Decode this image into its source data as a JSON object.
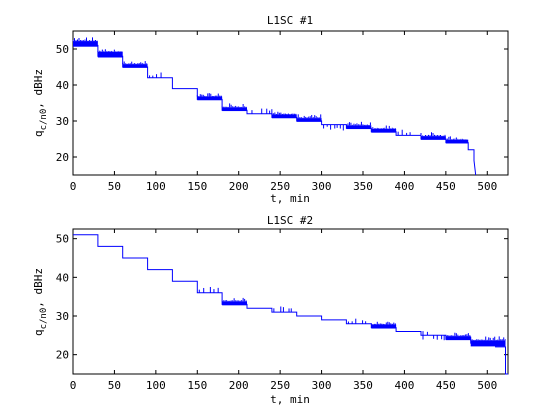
{
  "chart_data": [
    {
      "type": "line",
      "title": "L1SC #1",
      "xlabel": "t, min",
      "ylabel_main": "q",
      "ylabel_sub": "c/n0",
      "ylabel_unit": ", dBHz",
      "xlim": [
        0,
        525
      ],
      "ylim": [
        15,
        55
      ],
      "xticks": [
        0,
        50,
        100,
        150,
        200,
        250,
        300,
        350,
        400,
        450,
        500
      ],
      "yticks": [
        20,
        30,
        40,
        50
      ],
      "color": "#0000ff",
      "series": [
        {
          "x": [
            0,
            30,
            30,
            60,
            60,
            90,
            90,
            120,
            120,
            150,
            150,
            180,
            180,
            210,
            210,
            240,
            240,
            270,
            270,
            300,
            300,
            330,
            330,
            360,
            360,
            390,
            390,
            420,
            420,
            450,
            450,
            477,
            477,
            484,
            484,
            486
          ],
          "y": [
            51,
            51,
            48,
            48,
            45,
            45,
            42,
            42,
            39,
            39,
            36,
            36,
            33,
            33,
            32,
            32,
            31,
            31,
            30,
            30,
            29,
            29,
            28,
            28,
            27,
            27,
            26,
            26,
            25,
            25,
            24,
            24,
            22,
            22,
            19,
            15
          ]
        }
      ],
      "dense_segments": [
        {
          "x": [
            0,
            30
          ],
          "y": 51,
          "spread": 1.2
        },
        {
          "x": [
            30,
            60
          ],
          "y": 48,
          "spread": 1.2
        },
        {
          "x": [
            60,
            90
          ],
          "y": 45,
          "spread": 0.8
        },
        {
          "x": [
            150,
            180
          ],
          "y": 36,
          "spread": 0.8
        },
        {
          "x": [
            180,
            210
          ],
          "y": 33,
          "spread": 0.8
        },
        {
          "x": [
            240,
            270
          ],
          "y": 31,
          "spread": 0.8
        },
        {
          "x": [
            270,
            300
          ],
          "y": 30,
          "spread": 0.8
        },
        {
          "x": [
            330,
            360
          ],
          "y": 28,
          "spread": 0.8
        },
        {
          "x": [
            360,
            390
          ],
          "y": 27,
          "spread": 0.8
        },
        {
          "x": [
            420,
            450
          ],
          "y": 25,
          "spread": 0.8
        },
        {
          "x": [
            450,
            477
          ],
          "y": 24,
          "spread": 0.8
        }
      ],
      "spikes": [
        {
          "x": [
            90,
            120
          ],
          "y": 42,
          "up": 1.2,
          "down": 0
        },
        {
          "x": [
            210,
            240
          ],
          "y": 32,
          "up": 1.2,
          "down": 0
        },
        {
          "x": [
            300,
            330
          ],
          "y": 29,
          "up": 0,
          "down": 1.0
        },
        {
          "x": [
            390,
            420
          ],
          "y": 26,
          "up": 1.0,
          "down": 0
        }
      ]
    },
    {
      "type": "line",
      "title": "L1SC #2",
      "xlabel": "t, min",
      "ylabel_main": "q",
      "ylabel_sub": "c/n0",
      "ylabel_unit": ", dBHz",
      "xlim": [
        0,
        525
      ],
      "ylim": [
        15,
        52.5
      ],
      "xticks": [
        0,
        50,
        100,
        150,
        200,
        250,
        300,
        350,
        400,
        450,
        500
      ],
      "yticks": [
        20,
        30,
        40,
        50
      ],
      "color": "#0000ff",
      "series": [
        {
          "x": [
            0,
            30,
            30,
            60,
            60,
            90,
            90,
            120,
            120,
            150,
            150,
            180,
            180,
            210,
            210,
            240,
            240,
            270,
            270,
            300,
            300,
            330,
            330,
            360,
            360,
            390,
            390,
            420,
            420,
            450,
            450,
            480,
            480,
            510,
            510,
            522,
            522,
            525
          ],
          "y": [
            51,
            51,
            48,
            48,
            45,
            45,
            42,
            42,
            39,
            39,
            36,
            36,
            33,
            33,
            32,
            32,
            31,
            31,
            30,
            30,
            29,
            29,
            28,
            28,
            27,
            27,
            26,
            26,
            25,
            25,
            24,
            24,
            23,
            23,
            22,
            22,
            15,
            15
          ]
        }
      ],
      "dense_segments": [
        {
          "x": [
            180,
            210
          ],
          "y": 33,
          "spread": 0.8
        },
        {
          "x": [
            360,
            390
          ],
          "y": 27,
          "spread": 0.8
        },
        {
          "x": [
            450,
            480
          ],
          "y": 24,
          "spread": 0.8
        },
        {
          "x": [
            480,
            522
          ],
          "y": 22.5,
          "spread": 1.2
        }
      ],
      "spikes": [
        {
          "x": [
            150,
            180
          ],
          "y": 36,
          "up": 1.0,
          "down": 0
        },
        {
          "x": [
            240,
            270
          ],
          "y": 31,
          "up": 0.8,
          "down": 0
        },
        {
          "x": [
            330,
            360
          ],
          "y": 28,
          "up": 1.0,
          "down": 0
        },
        {
          "x": [
            420,
            450
          ],
          "y": 25,
          "up": 1.0,
          "down": 1.0
        }
      ]
    }
  ]
}
